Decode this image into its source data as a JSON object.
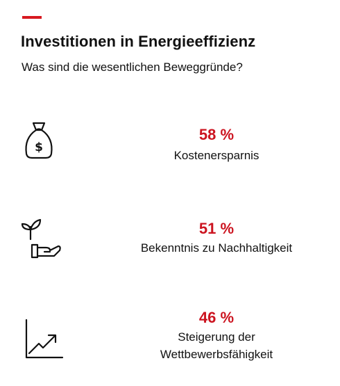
{
  "header": {
    "accent_color": "#d71920",
    "title": "Investitionen in Energieeffizienz",
    "subtitle": "Was sind die wesentlichen Beweggründe?"
  },
  "chart_data": {
    "type": "table",
    "title": "Investitionen in Energieeffizienz",
    "subtitle": "Was sind die wesentlichen Beweggründe?",
    "value_color": "#cc1420",
    "items": [
      {
        "icon": "money-bag-icon",
        "value": 58,
        "value_text": "58 %",
        "label_lines": [
          "Kostenersparnis"
        ]
      },
      {
        "icon": "hand-plant-icon",
        "value": 51,
        "value_text": "51 %",
        "label_lines": [
          "Bekenntnis zu Nachhaltigkeit"
        ]
      },
      {
        "icon": "growth-chart-icon",
        "value": 46,
        "value_text": "46 %",
        "label_lines": [
          "Steigerung der",
          "Wettbewerbsfähigkeit"
        ]
      }
    ]
  }
}
